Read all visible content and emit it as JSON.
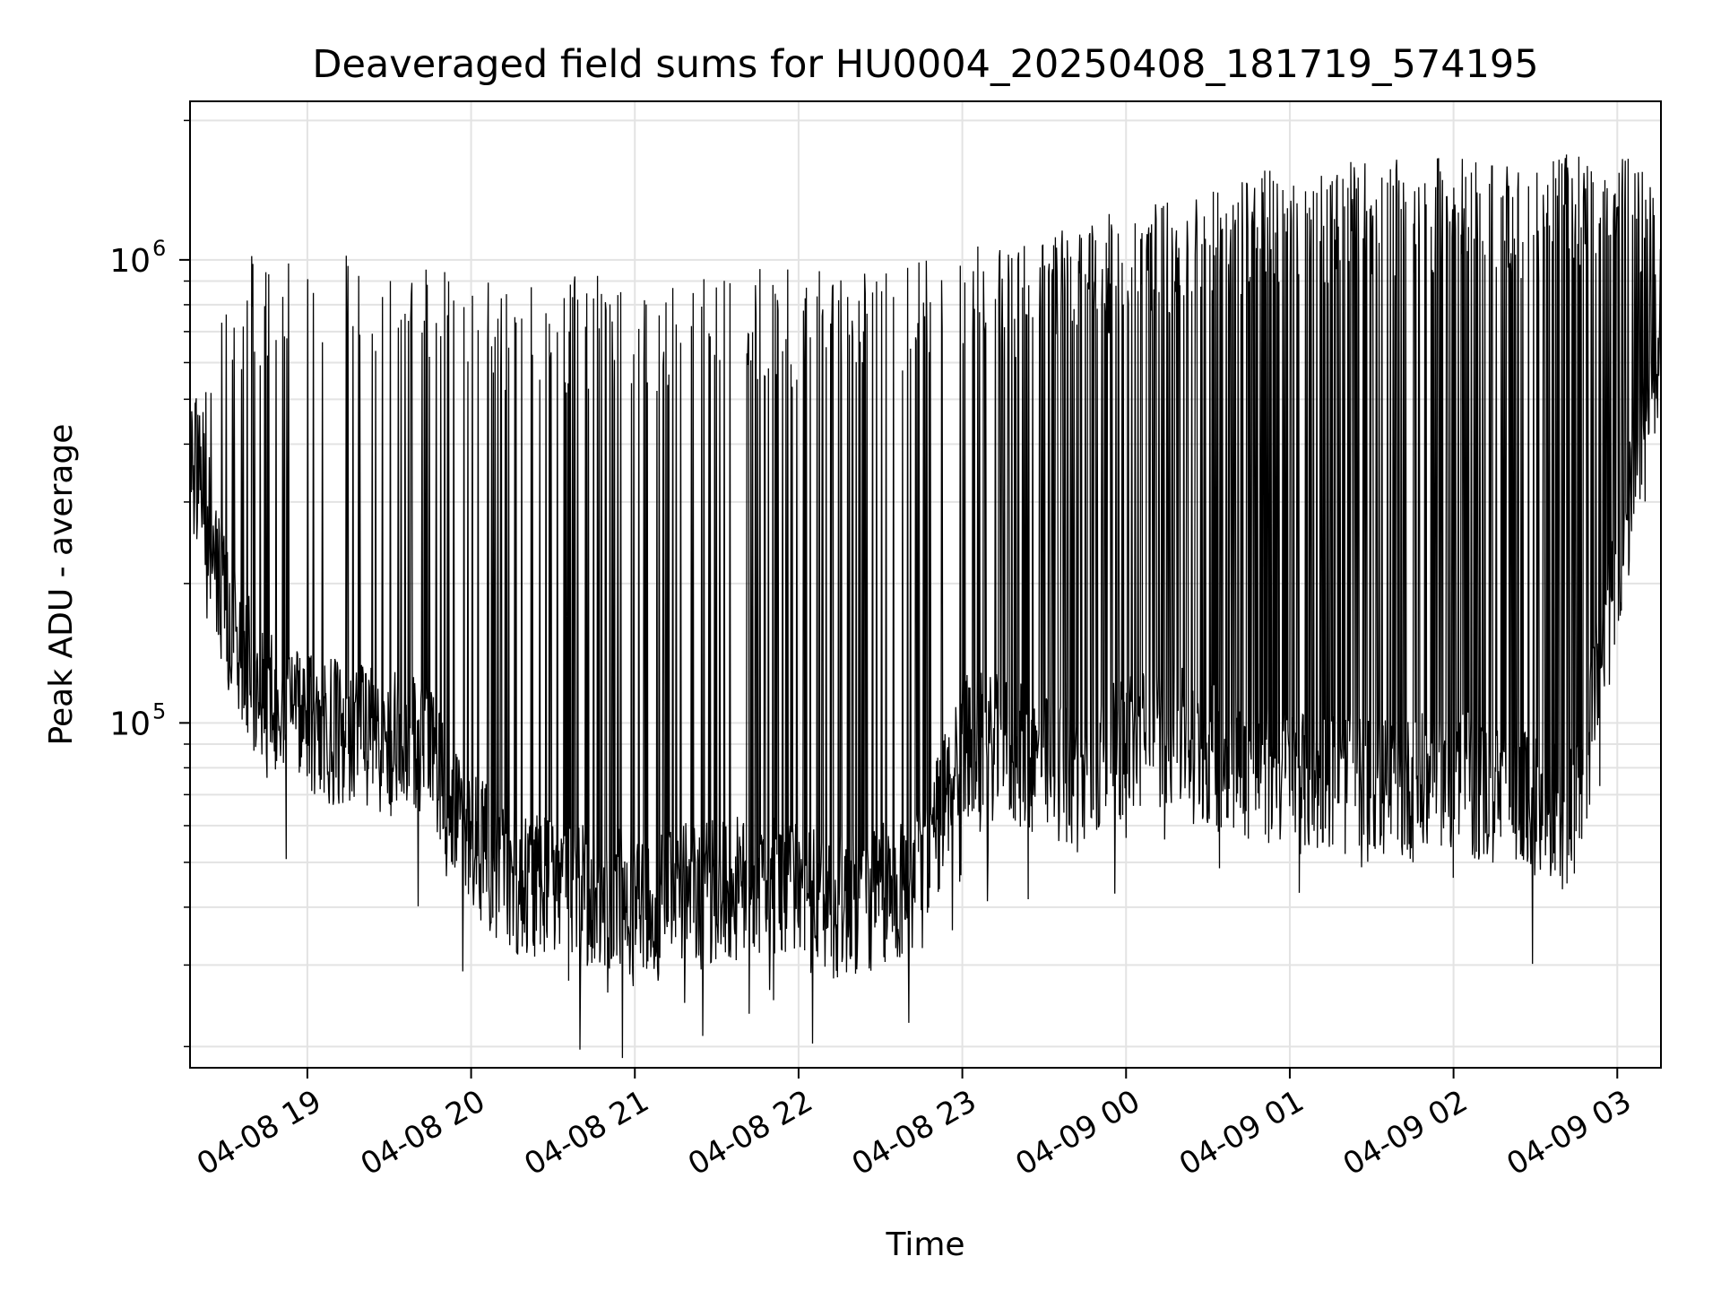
{
  "chart_data": {
    "type": "line",
    "title": "Deaveraged field sums for HU0004_20250408_181719_574195",
    "xlabel": "Time",
    "ylabel": "Peak ADU - average",
    "yscale": "log",
    "ylim": [
      18000,
      2200000
    ],
    "xlim": [
      "2025-04-08 18:17",
      "2025-04-09 03:16"
    ],
    "grid": true,
    "line_color": "#000000",
    "x_ticks": [
      {
        "label": "04-08 19",
        "value": "2025-04-08 19:00"
      },
      {
        "label": "04-08 20",
        "value": "2025-04-08 20:00"
      },
      {
        "label": "04-08 21",
        "value": "2025-04-08 21:00"
      },
      {
        "label": "04-08 22",
        "value": "2025-04-08 22:00"
      },
      {
        "label": "04-08 23",
        "value": "2025-04-08 23:00"
      },
      {
        "label": "04-09 00",
        "value": "2025-04-09 00:00"
      },
      {
        "label": "04-09 01",
        "value": "2025-04-09 01:00"
      },
      {
        "label": "04-09 02",
        "value": "2025-04-09 02:00"
      },
      {
        "label": "04-09 03",
        "value": "2025-04-09 03:00"
      }
    ],
    "y_ticks": [
      {
        "base": "10",
        "exp": "5",
        "value": 100000
      },
      {
        "base": "10",
        "exp": "6",
        "value": 1000000
      }
    ],
    "series": [
      {
        "style": "dense oscillating line; values alternate between a low baseline and high spikes",
        "x": [
          "2025-04-08 18:17",
          "2025-04-08 18:20",
          "2025-04-08 18:30",
          "2025-04-08 18:45",
          "2025-04-08 19:00",
          "2025-04-08 19:15",
          "2025-04-08 19:30",
          "2025-04-08 19:45",
          "2025-04-08 20:00",
          "2025-04-08 20:15",
          "2025-04-08 20:30",
          "2025-04-08 20:45",
          "2025-04-08 21:00",
          "2025-04-08 21:15",
          "2025-04-08 21:30",
          "2025-04-08 21:45",
          "2025-04-08 22:00",
          "2025-04-08 22:15",
          "2025-04-08 22:30",
          "2025-04-08 22:45",
          "2025-04-08 23:00",
          "2025-04-08 23:15",
          "2025-04-08 23:30",
          "2025-04-08 23:45",
          "2025-04-09 00:00",
          "2025-04-09 00:15",
          "2025-04-09 00:30",
          "2025-04-09 00:45",
          "2025-04-09 01:00",
          "2025-04-09 01:15",
          "2025-04-09 01:30",
          "2025-04-09 01:45",
          "2025-04-09 02:00",
          "2025-04-09 02:15",
          "2025-04-09 02:30",
          "2025-04-09 02:45",
          "2025-04-09 03:00",
          "2025-04-09 03:16"
        ],
        "baseline": [
          350000,
          380000,
          170000,
          110000,
          98000,
          95000,
          90000,
          85000,
          55000,
          46000,
          44000,
          42000,
          41000,
          42000,
          43000,
          44000,
          42000,
          40000,
          42000,
          46000,
          90000,
          88000,
          80000,
          75000,
          90000,
          95000,
          85000,
          80000,
          75000,
          75000,
          72000,
          72000,
          75000,
          70000,
          65000,
          62000,
          220000,
          600000
        ],
        "peak": [
          400000,
          450000,
          1000000,
          1050000,
          1000000,
          1080000,
          1000000,
          950000,
          950000,
          950000,
          940000,
          930000,
          950000,
          940000,
          960000,
          960000,
          960000,
          960000,
          980000,
          1000000,
          1100000,
          1050000,
          1150000,
          1200000,
          1300000,
          1350000,
          1450000,
          1550000,
          1600000,
          1620000,
          1640000,
          1650000,
          1680000,
          1650000,
          1660000,
          1700000,
          1750000,
          1450000
        ],
        "low_dips": [
          50000,
          44000,
          52000,
          38000,
          31000,
          34000,
          28000,
          31000,
          29000,
          31000,
          27000,
          30000,
          42000,
          46000,
          44000,
          45000,
          40000,
          42000,
          38000,
          33000
        ]
      }
    ]
  }
}
